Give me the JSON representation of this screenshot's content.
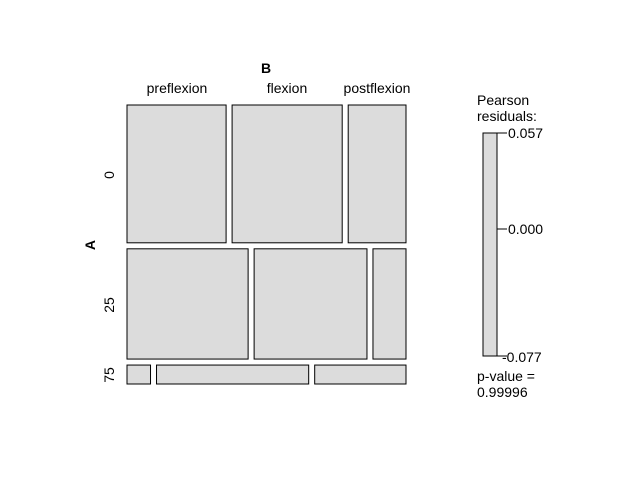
{
  "chart_data": {
    "type": "mosaic",
    "row_variable": "A",
    "column_variable": "B",
    "rows": [
      "0",
      "25",
      "75"
    ],
    "columns": [
      "preflexion",
      "flexion",
      "postflexion"
    ],
    "row_fractions": [
      0.4,
      0.32,
      0.055
    ],
    "cell_fractions": [
      [
        0.36,
        0.4,
        0.21
      ],
      [
        0.44,
        0.41,
        0.12
      ],
      [
        0.085,
        0.55,
        0.33
      ]
    ],
    "fill_color": "#dcdcdc",
    "legend": {
      "title_line1": "Pearson",
      "title_line2": "residuals:",
      "max": "0.057",
      "mid": "0.000",
      "min": "-0.077",
      "pvalue_label": "p-value =",
      "pvalue": "0.99996"
    }
  }
}
